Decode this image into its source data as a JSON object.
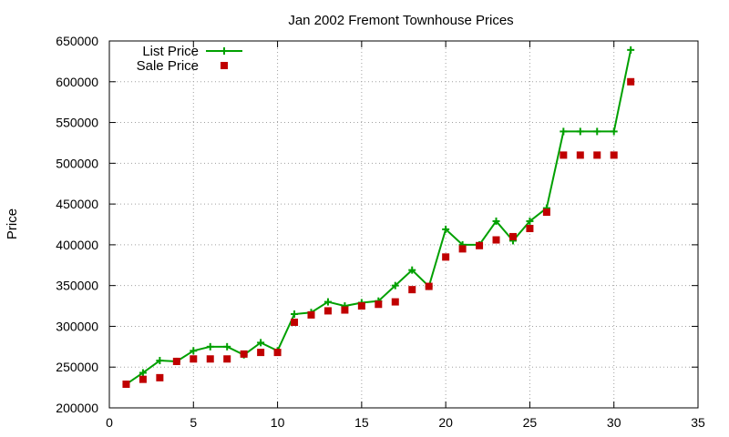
{
  "chart_data": {
    "type": "line",
    "title": "Jan 2002 Fremont Townhouse Prices",
    "xlabel": "",
    "ylabel": "Price",
    "xlim": [
      0,
      35
    ],
    "ylim": [
      200000,
      650000
    ],
    "x_ticks": [
      0,
      5,
      10,
      15,
      20,
      25,
      30,
      35
    ],
    "y_ticks": [
      200000,
      250000,
      300000,
      350000,
      400000,
      450000,
      500000,
      550000,
      600000,
      650000
    ],
    "grid": true,
    "legend_position": "top-left",
    "series": [
      {
        "name": "List Price",
        "style": "linespoints",
        "color": "#00a000",
        "marker": "plus",
        "x": [
          1,
          2,
          3,
          4,
          5,
          6,
          7,
          8,
          9,
          10,
          11,
          12,
          13,
          14,
          15,
          16,
          17,
          18,
          19,
          20,
          21,
          22,
          23,
          24,
          25,
          26,
          27,
          28,
          29,
          30,
          31
        ],
        "values": [
          229000,
          243000,
          258000,
          257000,
          270000,
          275000,
          275000,
          265000,
          280000,
          270000,
          315000,
          317000,
          330000,
          325000,
          329000,
          331000,
          350000,
          369000,
          349000,
          419000,
          400000,
          400000,
          429000,
          405000,
          429000,
          445000,
          539000,
          539000,
          539000,
          539000,
          639000
        ]
      },
      {
        "name": "Sale Price",
        "style": "points",
        "color": "#c00000",
        "marker": "square",
        "x": [
          1,
          2,
          3,
          4,
          5,
          6,
          7,
          8,
          9,
          10,
          11,
          12,
          13,
          14,
          15,
          16,
          17,
          18,
          19,
          20,
          21,
          22,
          23,
          24,
          25,
          26,
          27,
          28,
          29,
          30,
          31
        ],
        "values": [
          229000,
          235000,
          237000,
          257000,
          260000,
          260000,
          260000,
          266000,
          268000,
          268000,
          305000,
          314000,
          319000,
          320000,
          325000,
          327000,
          330000,
          345000,
          349000,
          385000,
          395000,
          399000,
          406000,
          410000,
          420000,
          440000,
          510000,
          510000,
          510000,
          510000,
          600000
        ]
      }
    ]
  }
}
